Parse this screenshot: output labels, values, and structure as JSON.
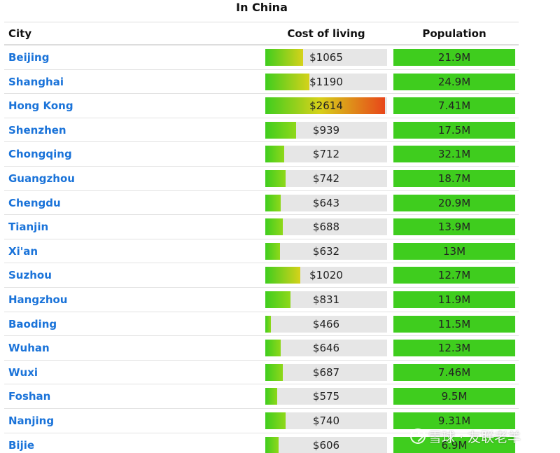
{
  "title": "In China",
  "headers": {
    "city": "City",
    "cost": "Cost of living",
    "population": "Population"
  },
  "rows": [
    {
      "city": "Beijing",
      "cost": "$1065",
      "cost_value": 1065,
      "population": "21.9M",
      "population_fill": 1.0
    },
    {
      "city": "Shanghai",
      "cost": "$1190",
      "cost_value": 1190,
      "population": "24.9M",
      "population_fill": 1.0
    },
    {
      "city": "Hong Kong",
      "cost": "$2614",
      "cost_value": 2614,
      "population": "7.41M",
      "population_fill": 1.0
    },
    {
      "city": "Shenzhen",
      "cost": "$939",
      "cost_value": 939,
      "population": "17.5M",
      "population_fill": 1.0
    },
    {
      "city": "Chongqing",
      "cost": "$712",
      "cost_value": 712,
      "population": "32.1M",
      "population_fill": 1.0
    },
    {
      "city": "Guangzhou",
      "cost": "$742",
      "cost_value": 742,
      "population": "18.7M",
      "population_fill": 1.0
    },
    {
      "city": "Chengdu",
      "cost": "$643",
      "cost_value": 643,
      "population": "20.9M",
      "population_fill": 1.0
    },
    {
      "city": "Tianjin",
      "cost": "$688",
      "cost_value": 688,
      "population": "13.9M",
      "population_fill": 1.0
    },
    {
      "city": "Xi'an",
      "cost": "$632",
      "cost_value": 632,
      "population": "13M",
      "population_fill": 1.0
    },
    {
      "city": "Suzhou",
      "cost": "$1020",
      "cost_value": 1020,
      "population": "12.7M",
      "population_fill": 1.0
    },
    {
      "city": "Hangzhou",
      "cost": "$831",
      "cost_value": 831,
      "population": "11.9M",
      "population_fill": 1.0
    },
    {
      "city": "Baoding",
      "cost": "$466",
      "cost_value": 466,
      "population": "11.5M",
      "population_fill": 1.0
    },
    {
      "city": "Wuhan",
      "cost": "$646",
      "cost_value": 646,
      "population": "12.3M",
      "population_fill": 1.0
    },
    {
      "city": "Wuxi",
      "cost": "$687",
      "cost_value": 687,
      "population": "7.46M",
      "population_fill": 1.0
    },
    {
      "city": "Foshan",
      "cost": "$575",
      "cost_value": 575,
      "population": "9.5M",
      "population_fill": 1.0
    },
    {
      "city": "Nanjing",
      "cost": "$740",
      "cost_value": 740,
      "population": "9.31M",
      "population_fill": 1.0
    },
    {
      "city": "Bijie",
      "cost": "$606",
      "cost_value": 606,
      "population": "6.9M",
      "population_fill": 1.0
    }
  ],
  "watermark": "雪球 · 友联老羊",
  "colors": {
    "link": "#1a73d9",
    "population_fill": "#3fcd1e",
    "bar_background": "#e6e6e6",
    "cost_green": "#3fcd1e",
    "cost_yellow": "#d6d21a",
    "cost_red": "#e8461a"
  }
}
